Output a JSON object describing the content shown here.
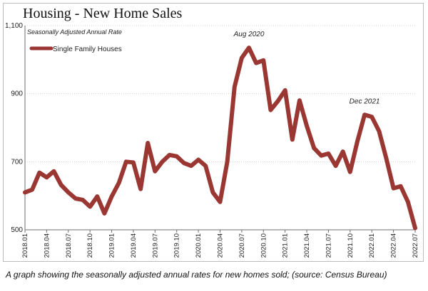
{
  "title": "Housing - New Home Sales",
  "caption": "A graph showing the seasonally adjusted annual rates for new homes sold; (source: Census Bureau)",
  "colors": {
    "series": "#9b3733",
    "grid": "#d0d0d0",
    "axis": "#6f6f6f",
    "frame": "#bdbdbd"
  },
  "chart_data": {
    "type": "line",
    "subtitle": "Seasonally Adjusted Annual Rate",
    "y_tick_labels": [
      "1,100",
      "900",
      "700",
      "500"
    ],
    "y_ticks": [
      1100,
      900,
      700,
      500
    ],
    "ylim": [
      500,
      1100
    ],
    "grid": true,
    "legend_position": "top-left",
    "x_tick_labels": [
      "2018.01",
      "2018.04",
      "2018.07",
      "2018.10",
      "2019.01",
      "2019.04",
      "2019.07",
      "2019.10",
      "2020.01",
      "2020.04",
      "2020.07",
      "2020.10",
      "2021.01",
      "2021.04",
      "2021.07",
      "2021.10",
      "2022.01",
      "2022.04",
      "2022.07"
    ],
    "annotations": [
      {
        "text": "Aug 2020",
        "x": "2020.08"
      },
      {
        "text": "Dec 2021",
        "x": "2021.12"
      }
    ],
    "series": [
      {
        "name": "Single Family Houses",
        "x": [
          "2018.01",
          "2018.02",
          "2018.03",
          "2018.04",
          "2018.05",
          "2018.06",
          "2018.07",
          "2018.08",
          "2018.09",
          "2018.10",
          "2018.11",
          "2018.12",
          "2019.01",
          "2019.02",
          "2019.03",
          "2019.04",
          "2019.05",
          "2019.06",
          "2019.07",
          "2019.08",
          "2019.09",
          "2019.10",
          "2019.11",
          "2019.12",
          "2020.01",
          "2020.02",
          "2020.03",
          "2020.04",
          "2020.05",
          "2020.06",
          "2020.07",
          "2020.08",
          "2020.09",
          "2020.10",
          "2020.11",
          "2020.12",
          "2021.01",
          "2021.02",
          "2021.03",
          "2021.04",
          "2021.05",
          "2021.06",
          "2021.07",
          "2021.08",
          "2021.09",
          "2021.10",
          "2021.11",
          "2021.12",
          "2022.01",
          "2022.02",
          "2022.03",
          "2022.04",
          "2022.05",
          "2022.06",
          "2022.07"
        ],
        "values": [
          610,
          618,
          668,
          654,
          672,
          632,
          610,
          592,
          588,
          568,
          598,
          548,
          598,
          638,
          700,
          698,
          620,
          755,
          672,
          700,
          720,
          716,
          696,
          688,
          706,
          688,
          610,
          582,
          700,
          920,
          1005,
          1035,
          990,
          998,
          852,
          878,
          910,
          765,
          880,
          805,
          740,
          718,
          724,
          688,
          730,
          670,
          760,
          838,
          832,
          790,
          710,
          622,
          628,
          582,
          505
        ]
      }
    ]
  }
}
